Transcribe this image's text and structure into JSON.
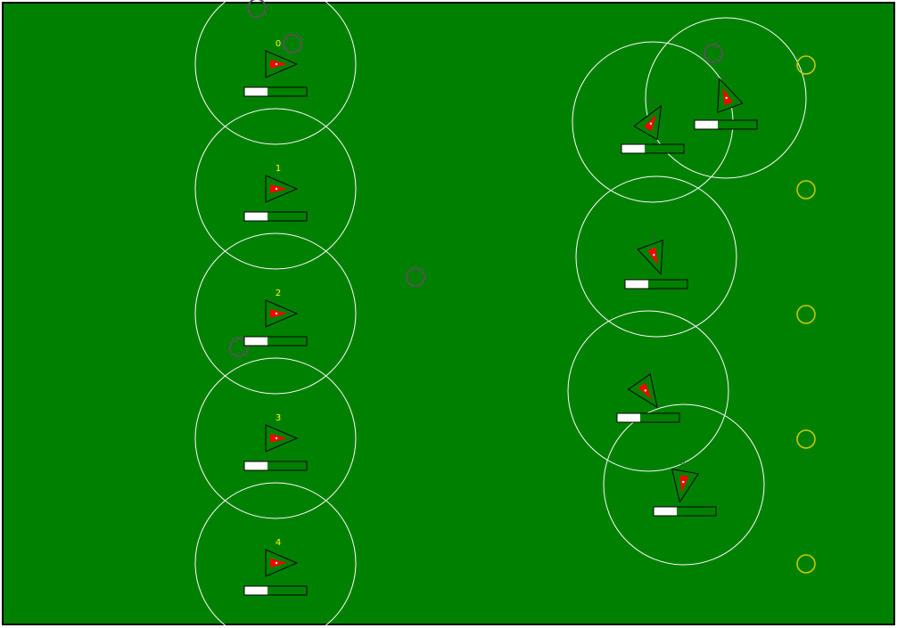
{
  "colors": {
    "field": "#008000",
    "frame": "#000000",
    "sensor_ring": "#ffffff",
    "team_left_id": "#ffff00",
    "team_right_id": "#2f5f2f",
    "agent_body": "#008000",
    "agent_core": "#ff0000",
    "health_fill": "#ffffff",
    "obstacle": "#555555",
    "target": "#cccc00"
  },
  "teams": [
    {
      "name": "left",
      "agents": [
        {
          "id": "0",
          "heading": 0,
          "health": 0.37
        },
        {
          "id": "1",
          "heading": 0,
          "health": 0.37
        },
        {
          "id": "2",
          "heading": 0,
          "health": 0.37
        },
        {
          "id": "3",
          "heading": 0,
          "health": 0.37
        },
        {
          "id": "4",
          "heading": 0,
          "health": 0.37
        }
      ]
    },
    {
      "name": "right",
      "agents": [
        {
          "id": "0",
          "heading": -60,
          "health": 0.37
        },
        {
          "id": "1",
          "heading": -110,
          "health": 0.37
        },
        {
          "id": "2",
          "heading": 70,
          "health": 0.37
        },
        {
          "id": "3",
          "heading": 55,
          "health": 0.37
        },
        {
          "id": "4",
          "heading": 100,
          "health": 0.37
        }
      ]
    }
  ],
  "obstacle_count": 5,
  "target_count": 5
}
